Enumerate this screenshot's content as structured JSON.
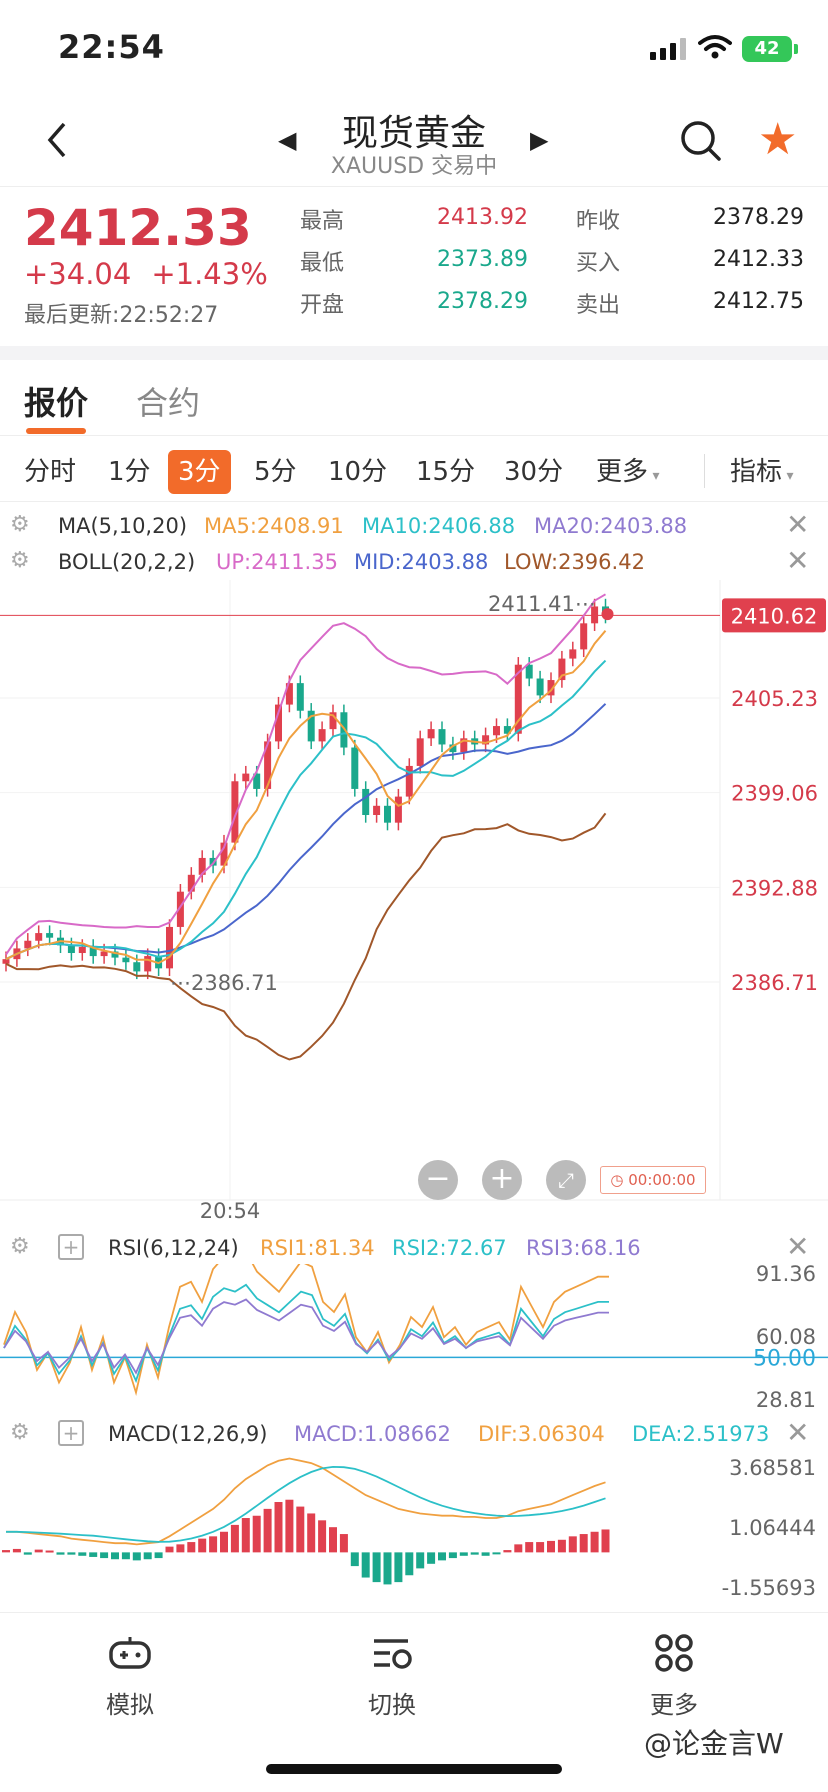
{
  "status_bar": {
    "time": "22:54",
    "battery": "42"
  },
  "header": {
    "title": "现货黄金",
    "subtitle": "XAUUSD 交易中",
    "back_icon": "chevron-left-icon",
    "search_icon": "search-icon",
    "favorite_icon": "star-icon",
    "favorite_color": "#f26b2a"
  },
  "quote": {
    "price": "2412.33",
    "change": "+34.04",
    "change_pct": "+1.43%",
    "updated": "最后更新:22:52:27",
    "stats": [
      {
        "label": "最高",
        "value": "2413.92",
        "color": "#d43a4a"
      },
      {
        "label": "最低",
        "value": "2373.89",
        "color": "#1aa88c"
      },
      {
        "label": "开盘",
        "value": "2378.29",
        "color": "#1aa88c"
      },
      {
        "label": "昨收",
        "value": "2378.29",
        "color": "#222222"
      },
      {
        "label": "买入",
        "value": "2412.33",
        "color": "#222222"
      },
      {
        "label": "卖出",
        "value": "2412.75",
        "color": "#222222"
      }
    ]
  },
  "tabs": {
    "quote": "报价",
    "contract": "合约"
  },
  "periods": {
    "items": [
      "分时",
      "1分",
      "3分",
      "5分",
      "10分",
      "15分",
      "30分",
      "更多"
    ],
    "active": "3分",
    "indicators": "指标"
  },
  "ma_line": {
    "name": "MA(5,10,20)",
    "ma5": "MA5:2408.91",
    "ma10": "MA10:2406.88",
    "ma20": "MA20:2403.88"
  },
  "boll_line": {
    "name": "BOLL(20,2,2)",
    "up": "UP:2411.35",
    "mid": "MID:2403.88",
    "low": "LOW:2396.42"
  },
  "main_chart": {
    "y_ticks": [
      "2405.23",
      "2399.06",
      "2392.88",
      "2386.71"
    ],
    "current_price": "2410.62",
    "high_mark": "2411.41",
    "low_mark": "2386.71",
    "time_label": "20:54",
    "countdown": "00:00:00",
    "colors": {
      "up": "#e0404e",
      "down": "#1aa88c",
      "ma5": "#f0a040",
      "ma10": "#2cc0c8",
      "ma20": "#4a66cc",
      "boll_up": "#d86ac8",
      "boll_low": "#a0572a"
    }
  },
  "rsi": {
    "name": "RSI(6,12,24)",
    "rsi1": "RSI1:81.34",
    "rsi2": "RSI2:72.67",
    "rsi3": "RSI3:68.16",
    "ticks": [
      "91.36",
      "60.08",
      "28.81"
    ],
    "mid": "50.00"
  },
  "macd": {
    "name": "MACD(12,26,9)",
    "macd": "MACD:1.08662",
    "dif": "DIF:3.06304",
    "dea": "DEA:2.51973",
    "ticks": [
      "3.68581",
      "1.06444",
      "-1.55693"
    ]
  },
  "bottom_nav": [
    {
      "label": "模拟",
      "icon": "gamepad-icon"
    },
    {
      "label": "切换",
      "icon": "switch-icon"
    },
    {
      "label": "更多",
      "icon": "grid-icon"
    }
  ],
  "watermark": "@论金言W"
}
